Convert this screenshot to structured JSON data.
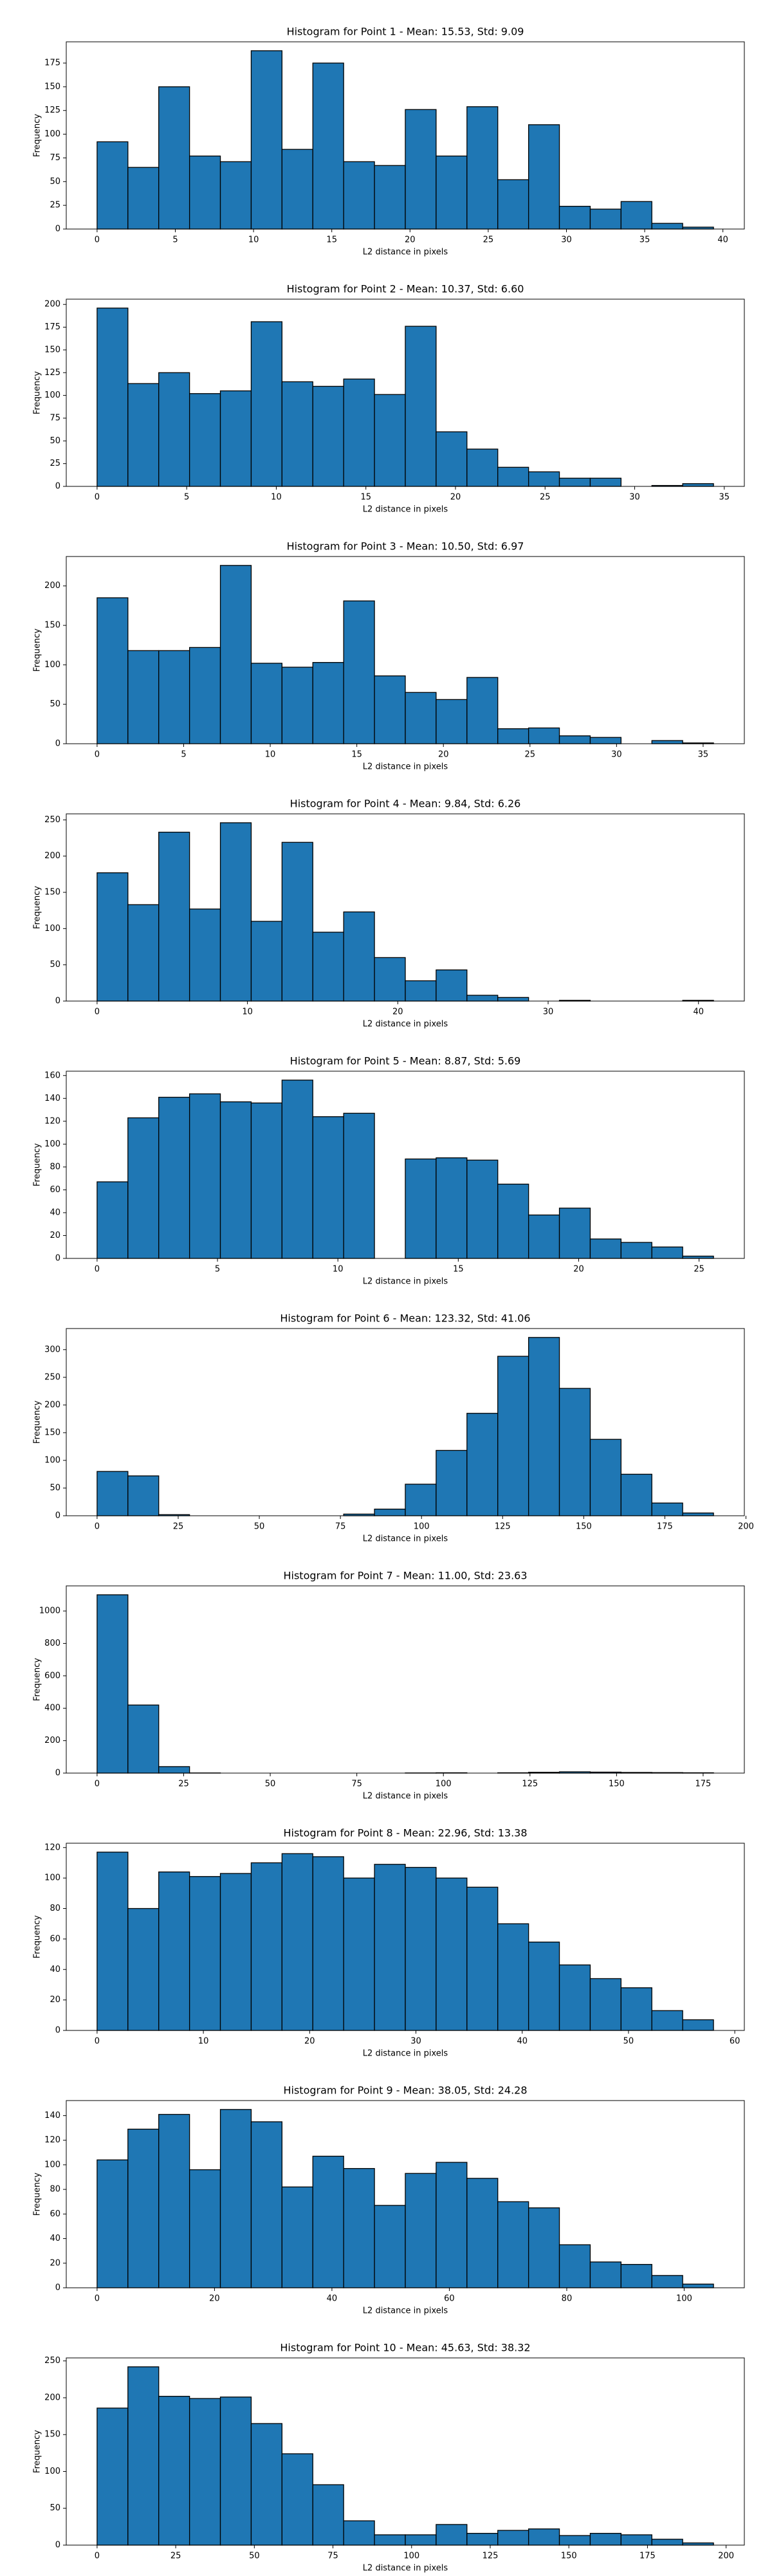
{
  "chart_data": [
    {
      "type": "histogram",
      "title": "Histogram for Point 1 - Mean: 15.53, Std: 9.09",
      "xlabel": "L2 distance in pixels",
      "ylabel": "Frequency",
      "color": "#1f77b4",
      "edgecolor": "#000000",
      "bins": [
        0,
        1.97,
        3.94,
        5.91,
        7.88,
        9.85,
        11.82,
        13.79,
        15.76,
        17.73,
        19.7,
        21.67,
        23.64,
        25.61,
        27.58,
        29.55,
        31.52,
        33.49,
        35.46,
        37.43,
        39.4
      ],
      "values": [
        92,
        65,
        150,
        77,
        71,
        188,
        84,
        175,
        71,
        67,
        126,
        77,
        129,
        52,
        110,
        24,
        21,
        29,
        6,
        2
      ],
      "xlim": [
        -1.97,
        41.37
      ],
      "ylim": [
        0,
        197.4
      ],
      "xticks": [
        0,
        5,
        10,
        15,
        20,
        25,
        30,
        35,
        40
      ],
      "yticks": [
        0,
        25,
        50,
        75,
        100,
        125,
        150,
        175
      ]
    },
    {
      "type": "histogram",
      "title": "Histogram for Point 2 - Mean: 10.37, Std: 6.60",
      "xlabel": "L2 distance in pixels",
      "ylabel": "Frequency",
      "color": "#1f77b4",
      "edgecolor": "#000000",
      "bins": [
        0,
        1.72,
        3.44,
        5.16,
        6.88,
        8.6,
        10.32,
        12.04,
        13.76,
        15.48,
        17.2,
        18.92,
        20.64,
        22.36,
        24.08,
        25.8,
        27.52,
        29.24,
        30.96,
        32.68,
        34.4
      ],
      "values": [
        196,
        113,
        125,
        102,
        105,
        181,
        115,
        110,
        118,
        101,
        176,
        60,
        41,
        21,
        16,
        9,
        9,
        0,
        1,
        3
      ],
      "xlim": [
        -1.72,
        36.12
      ],
      "ylim": [
        0,
        205.8
      ],
      "xticks": [
        0,
        5,
        10,
        15,
        20,
        25,
        30,
        35
      ],
      "yticks": [
        0,
        25,
        50,
        75,
        100,
        125,
        150,
        175,
        200
      ]
    },
    {
      "type": "histogram",
      "title": "Histogram for Point 3 - Mean: 10.50, Std: 6.97",
      "xlabel": "L2 distance in pixels",
      "ylabel": "Frequency",
      "color": "#1f77b4",
      "edgecolor": "#000000",
      "bins": [
        0,
        1.78,
        3.56,
        5.34,
        7.12,
        8.9,
        10.68,
        12.46,
        14.24,
        16.02,
        17.8,
        19.58,
        21.36,
        23.14,
        24.92,
        26.7,
        28.48,
        30.26,
        32.04,
        33.82,
        35.6
      ],
      "values": [
        185,
        118,
        118,
        122,
        226,
        102,
        97,
        103,
        181,
        86,
        65,
        56,
        84,
        19,
        20,
        10,
        8,
        0,
        4,
        1
      ],
      "xlim": [
        -1.78,
        37.38
      ],
      "ylim": [
        0,
        237.3
      ],
      "xticks": [
        0,
        5,
        10,
        15,
        20,
        25,
        30,
        35
      ],
      "yticks": [
        0,
        50,
        100,
        150,
        200
      ]
    },
    {
      "type": "histogram",
      "title": "Histogram for Point 4 - Mean: 9.84, Std: 6.26",
      "xlabel": "L2 distance in pixels",
      "ylabel": "Frequency",
      "color": "#1f77b4",
      "edgecolor": "#000000",
      "bins": [
        0,
        2.05,
        4.1,
        6.15,
        8.2,
        10.25,
        12.3,
        14.35,
        16.4,
        18.45,
        20.5,
        22.55,
        24.6,
        26.65,
        28.7,
        30.75,
        32.8,
        34.85,
        36.9,
        38.95,
        41
      ],
      "values": [
        177,
        133,
        233,
        127,
        246,
        110,
        219,
        95,
        123,
        60,
        28,
        43,
        8,
        5,
        0,
        1,
        0,
        0,
        0,
        1
      ],
      "xlim": [
        -2.05,
        43.05
      ],
      "ylim": [
        0,
        258.3
      ],
      "xticks": [
        0,
        10,
        20,
        30,
        40
      ],
      "yticks": [
        0,
        50,
        100,
        150,
        200,
        250
      ]
    },
    {
      "type": "histogram",
      "title": "Histogram for Point 5 - Mean: 8.87, Std: 5.69",
      "xlabel": "L2 distance in pixels",
      "ylabel": "Frequency",
      "color": "#1f77b4",
      "edgecolor": "#000000",
      "bins": [
        0,
        1.28,
        2.56,
        3.84,
        5.12,
        6.4,
        7.68,
        8.96,
        10.24,
        11.52,
        12.8,
        14.08,
        15.36,
        16.64,
        17.92,
        19.2,
        20.48,
        21.76,
        23.04,
        24.32,
        25.6
      ],
      "values": [
        67,
        123,
        141,
        144,
        137,
        136,
        156,
        124,
        127,
        0,
        87,
        88,
        86,
        65,
        38,
        44,
        17,
        14,
        10,
        2
      ],
      "xlim": [
        -1.28,
        26.88
      ],
      "ylim": [
        0,
        163.8
      ],
      "xticks": [
        0,
        5,
        10,
        15,
        20,
        25
      ],
      "yticks": [
        0,
        20,
        40,
        60,
        80,
        100,
        120,
        140,
        160
      ]
    },
    {
      "type": "histogram",
      "title": "Histogram for Point 6 - Mean: 123.32, Std: 41.06",
      "xlabel": "L2 distance in pixels",
      "ylabel": "Frequency",
      "color": "#1f77b4",
      "edgecolor": "#000000",
      "bins": [
        0,
        9.5,
        19,
        28.5,
        38,
        47.5,
        57,
        66.5,
        76,
        85.5,
        95,
        104.5,
        114,
        123.5,
        133,
        142.5,
        152,
        161.5,
        171,
        180.5,
        190
      ],
      "values": [
        80,
        72,
        2,
        0,
        0,
        0,
        0,
        0,
        3,
        12,
        57,
        118,
        185,
        288,
        322,
        230,
        138,
        75,
        23,
        5
      ],
      "xlim": [
        -9.5,
        199.5
      ],
      "ylim": [
        0,
        338.1
      ],
      "xticks": [
        0,
        25,
        50,
        75,
        100,
        125,
        150,
        175,
        200
      ],
      "yticks": [
        0,
        50,
        100,
        150,
        200,
        250,
        300
      ]
    },
    {
      "type": "histogram",
      "title": "Histogram for Point 7 - Mean: 11.00, Std: 23.63",
      "xlabel": "L2 distance in pixels",
      "ylabel": "Frequency",
      "color": "#1f77b4",
      "edgecolor": "#000000",
      "bins": [
        0,
        8.9,
        17.8,
        26.7,
        35.6,
        44.5,
        53.4,
        62.3,
        71.2,
        80.1,
        89,
        97.9,
        106.8,
        115.7,
        124.6,
        133.5,
        142.4,
        151.3,
        160.2,
        169.1,
        178
      ],
      "values": [
        1100,
        420,
        40,
        1,
        0,
        0,
        0,
        0,
        0,
        0,
        1,
        2,
        0,
        2,
        5,
        8,
        6,
        4,
        3,
        2
      ],
      "xlim": [
        -8.9,
        186.9
      ],
      "ylim": [
        0,
        1155
      ],
      "xticks": [
        0,
        25,
        50,
        75,
        100,
        125,
        150,
        175
      ],
      "yticks": [
        0,
        200,
        400,
        600,
        800,
        1000
      ]
    },
    {
      "type": "histogram",
      "title": "Histogram for Point 8 - Mean: 22.96, Std: 13.38",
      "xlabel": "L2 distance in pixels",
      "ylabel": "Frequency",
      "color": "#1f77b4",
      "edgecolor": "#000000",
      "bins": [
        0,
        2.9,
        5.8,
        8.7,
        11.6,
        14.5,
        17.4,
        20.3,
        23.2,
        26.1,
        29,
        31.9,
        34.8,
        37.7,
        40.6,
        43.5,
        46.4,
        49.3,
        52.2,
        55.1,
        58
      ],
      "values": [
        117,
        80,
        104,
        101,
        103,
        110,
        116,
        114,
        100,
        109,
        107,
        100,
        94,
        70,
        58,
        43,
        34,
        28,
        13,
        7
      ],
      "xlim": [
        -2.9,
        60.9
      ],
      "ylim": [
        0,
        122.85
      ],
      "xticks": [
        0,
        10,
        20,
        30,
        40,
        50,
        60
      ],
      "yticks": [
        0,
        20,
        40,
        60,
        80,
        100,
        120
      ]
    },
    {
      "type": "histogram",
      "title": "Histogram for Point 9 - Mean: 38.05, Std: 24.28",
      "xlabel": "L2 distance in pixels",
      "ylabel": "Frequency",
      "color": "#1f77b4",
      "edgecolor": "#000000",
      "bins": [
        0,
        5.25,
        10.5,
        15.75,
        21,
        26.25,
        31.5,
        36.75,
        42,
        47.25,
        52.5,
        57.75,
        63,
        68.25,
        73.5,
        78.75,
        84,
        89.25,
        94.5,
        99.75,
        105
      ],
      "values": [
        104,
        129,
        141,
        96,
        145,
        135,
        82,
        107,
        97,
        67,
        93,
        102,
        89,
        70,
        65,
        35,
        21,
        19,
        10,
        3
      ],
      "xlim": [
        -5.25,
        110.25
      ],
      "ylim": [
        0,
        152.25
      ],
      "xticks": [
        0,
        20,
        40,
        60,
        80,
        100
      ],
      "yticks": [
        0,
        20,
        40,
        60,
        80,
        100,
        120,
        140
      ]
    },
    {
      "type": "histogram",
      "title": "Histogram for Point 10 - Mean: 45.63, Std: 38.32",
      "xlabel": "L2 distance in pixels",
      "ylabel": "Frequency",
      "color": "#1f77b4",
      "edgecolor": "#000000",
      "bins": [
        0,
        9.8,
        19.6,
        29.4,
        39.2,
        49,
        58.8,
        68.6,
        78.4,
        88.2,
        98,
        107.8,
        117.6,
        127.4,
        137.2,
        147,
        156.8,
        166.6,
        176.4,
        186.2,
        196
      ],
      "values": [
        186,
        242,
        202,
        199,
        201,
        165,
        124,
        82,
        33,
        14,
        14,
        28,
        16,
        20,
        22,
        13,
        16,
        14,
        8,
        3
      ],
      "xlim": [
        -9.8,
        205.8
      ],
      "ylim": [
        0,
        254.1
      ],
      "xticks": [
        0,
        25,
        50,
        75,
        100,
        125,
        150,
        175,
        200
      ],
      "yticks": [
        0,
        50,
        100,
        150,
        200,
        250
      ]
    }
  ]
}
